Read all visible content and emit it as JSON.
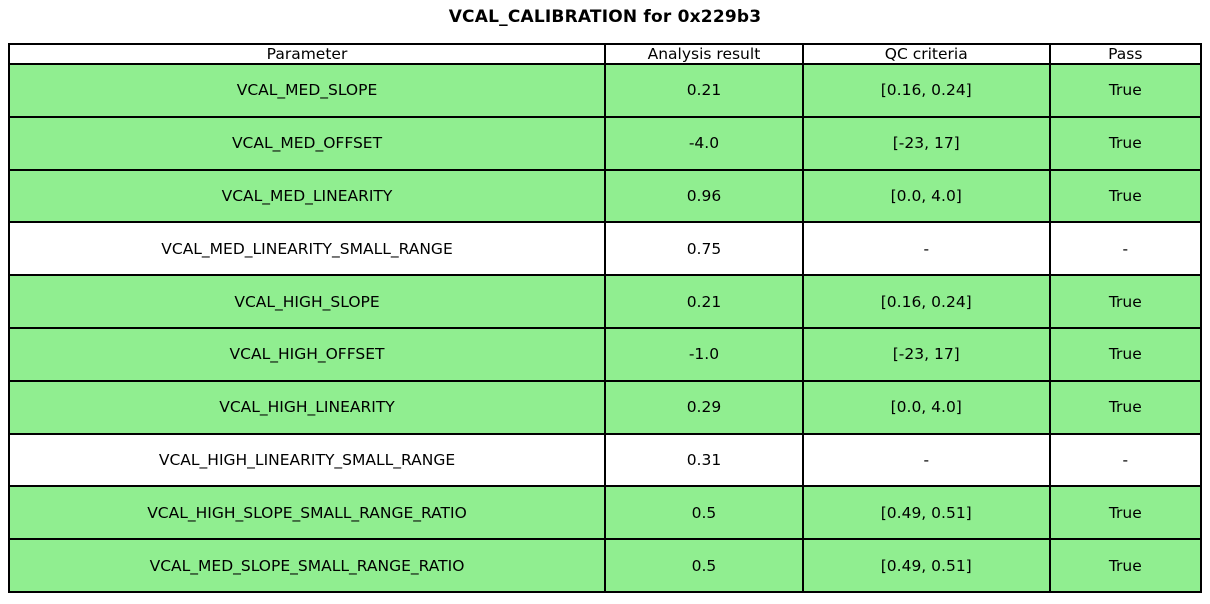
{
  "title": "VCAL_CALIBRATION for 0x229b3",
  "chart_data": {
    "type": "table",
    "title": "VCAL_CALIBRATION for 0x229b3",
    "columns": [
      "Parameter",
      "Analysis result",
      "QC criteria",
      "Pass"
    ],
    "rows": [
      {
        "parameter": "VCAL_MED_SLOPE",
        "result": "0.21",
        "criteria": "[0.16, 0.24]",
        "pass": "True",
        "highlight": true
      },
      {
        "parameter": "VCAL_MED_OFFSET",
        "result": "-4.0",
        "criteria": "[-23, 17]",
        "pass": "True",
        "highlight": true
      },
      {
        "parameter": "VCAL_MED_LINEARITY",
        "result": "0.96",
        "criteria": "[0.0, 4.0]",
        "pass": "True",
        "highlight": true
      },
      {
        "parameter": "VCAL_MED_LINEARITY_SMALL_RANGE",
        "result": "0.75",
        "criteria": "-",
        "pass": "-",
        "highlight": false
      },
      {
        "parameter": "VCAL_HIGH_SLOPE",
        "result": "0.21",
        "criteria": "[0.16, 0.24]",
        "pass": "True",
        "highlight": true
      },
      {
        "parameter": "VCAL_HIGH_OFFSET",
        "result": "-1.0",
        "criteria": "[-23, 17]",
        "pass": "True",
        "highlight": true
      },
      {
        "parameter": "VCAL_HIGH_LINEARITY",
        "result": "0.29",
        "criteria": "[0.0, 4.0]",
        "pass": "True",
        "highlight": true
      },
      {
        "parameter": "VCAL_HIGH_LINEARITY_SMALL_RANGE",
        "result": "0.31",
        "criteria": "-",
        "pass": "-",
        "highlight": false
      },
      {
        "parameter": "VCAL_HIGH_SLOPE_SMALL_RANGE_RATIO",
        "result": "0.5",
        "criteria": "[0.49, 0.51]",
        "pass": "True",
        "highlight": true
      },
      {
        "parameter": "VCAL_MED_SLOPE_SMALL_RANGE_RATIO",
        "result": "0.5",
        "criteria": "[0.49, 0.51]",
        "pass": "True",
        "highlight": true
      }
    ],
    "layout": {
      "column_width_percents": [
        50.0,
        16.6,
        20.7,
        12.7
      ],
      "highlighted_row_color": "#90EE90",
      "neutral_row_color": "#FFFFFF",
      "grid": true
    }
  },
  "colors": {
    "pass_green": "#90EE90",
    "neutral_white": "#FFFFFF",
    "border_black": "#000000"
  }
}
